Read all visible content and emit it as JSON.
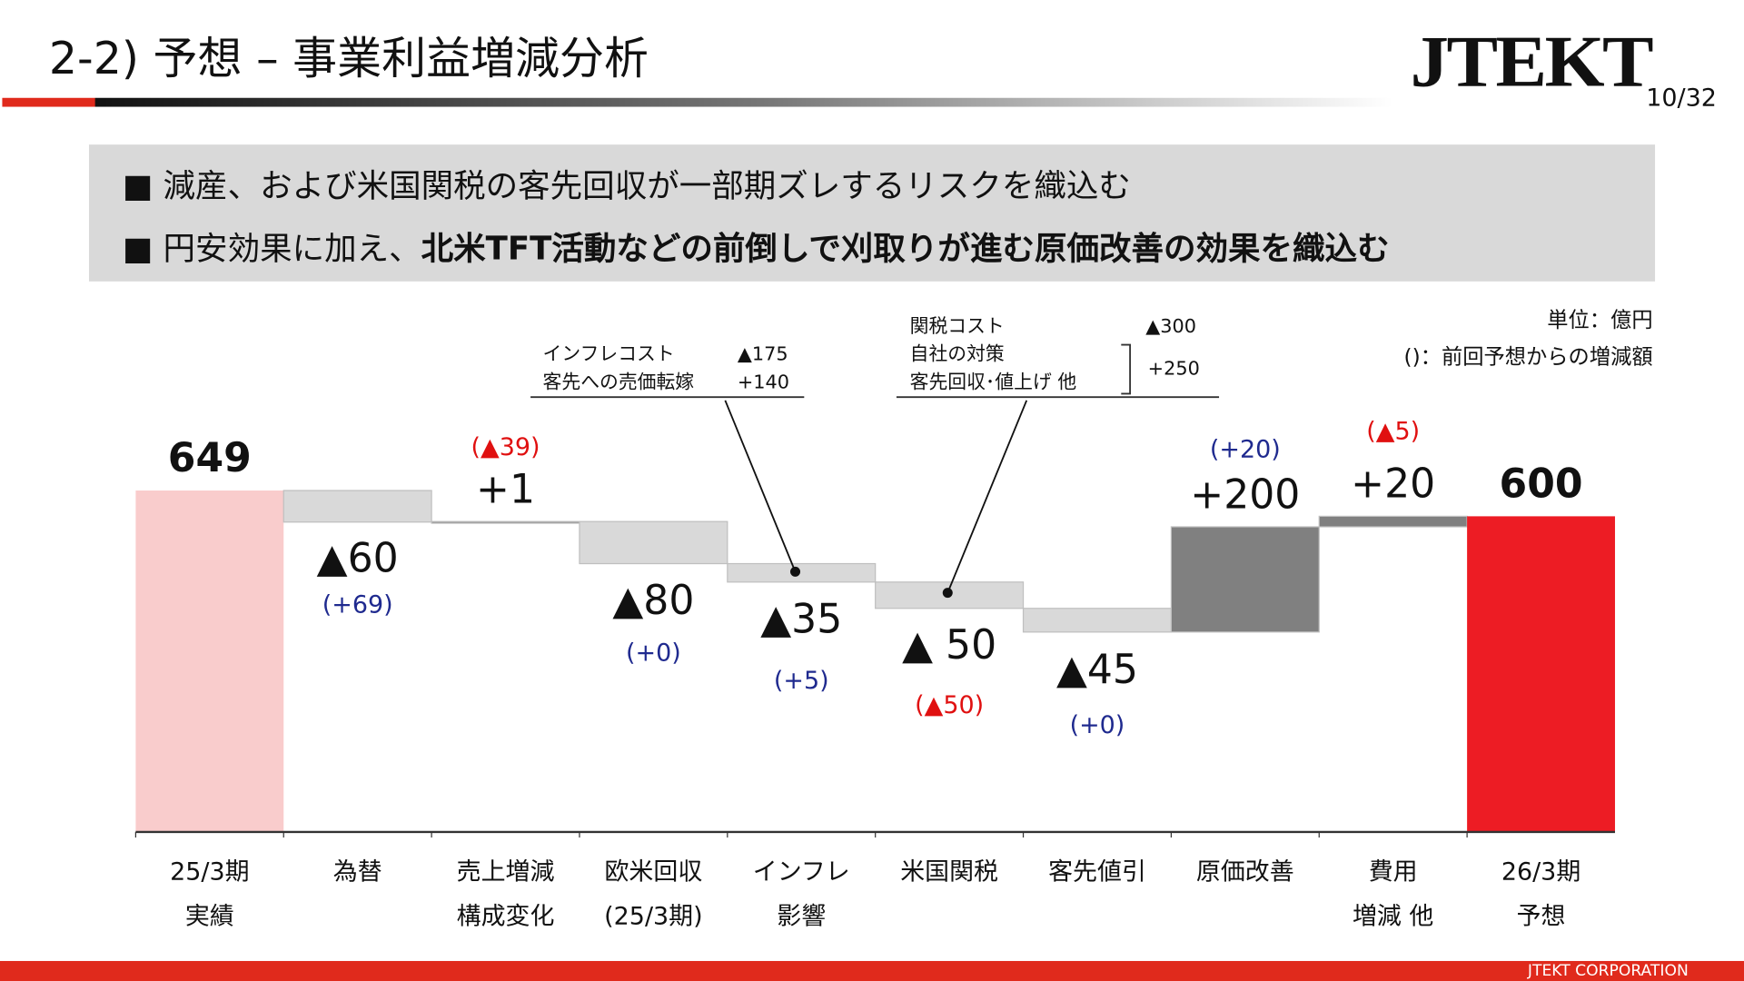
{
  "header": {
    "title": "2-2) 予想 – 事業利益増減分析",
    "logo": "JTEKT",
    "page": "10/32"
  },
  "summary": {
    "bullet1": "減産、および米国関税の客先回収が一部期ズレするリスクを織込む",
    "bullet2_plain": "円安効果に加え、",
    "bullet2_bold": "北米TFT活動などの前倒しで刈取りが進む原価改善の効果を織込む",
    "marker": "■"
  },
  "unit": {
    "line1": "単位：億円",
    "line2": "()：前回予想からの増減額"
  },
  "notes": {
    "inflation": {
      "r1_label": "インフレコスト",
      "r1_value": "▲175",
      "r2_label": "客先への売価転嫁",
      "r2_value": "+140"
    },
    "tariff": {
      "r1_label": "関税コスト",
      "r1_value": "▲300",
      "r2_label": "自社の対策",
      "r3_label": "客先回収･値上げ 他",
      "r23_value": "+250"
    }
  },
  "colors": {
    "start": "#f9cccc",
    "end": "#ed1c24",
    "decrease": "#d9d9d9",
    "increase": "#808080",
    "diff_positive": "#1f2a8f",
    "diff_negative": "#e01010"
  },
  "chart_data": {
    "type": "waterfall",
    "categories": [
      "25/3期\n実績",
      "為替",
      "売上増減\n構成変化",
      "欧米回収\n(25/3期)",
      "インフレ\n影響",
      "米国関税",
      "客先値引",
      "原価改善",
      "費用\n増減 他",
      "26/3期\n予想"
    ],
    "category_lines": [
      [
        "25/3期",
        "実績"
      ],
      [
        "為替",
        ""
      ],
      [
        "売上増減",
        "構成変化"
      ],
      [
        "欧米回収",
        "(25/3期)"
      ],
      [
        "インフレ",
        "影響"
      ],
      [
        "米国関税",
        ""
      ],
      [
        "客先値引",
        ""
      ],
      [
        "原価改善",
        ""
      ],
      [
        "費用",
        "増減 他"
      ],
      [
        "26/3期",
        "予想"
      ]
    ],
    "values": [
      649,
      -60,
      1,
      -80,
      -35,
      -50,
      -45,
      200,
      20,
      600
    ],
    "kinds": [
      "total",
      "delta",
      "delta",
      "delta",
      "delta",
      "delta",
      "delta",
      "delta",
      "delta",
      "total"
    ],
    "labels": [
      "649",
      "▲60",
      "+1",
      "▲80",
      "▲35",
      "▲ 50",
      "▲45",
      "+200",
      "+20",
      "600"
    ],
    "diff_from_previous": [
      "",
      "(+69)",
      "(▲39)",
      "(+0)",
      "(+5)",
      "(▲50)",
      "(+0)",
      "(+20)",
      "(▲5)",
      ""
    ],
    "ylim": [
      0,
      649
    ]
  },
  "footer": {
    "company": "JTEKT CORPORATION"
  }
}
